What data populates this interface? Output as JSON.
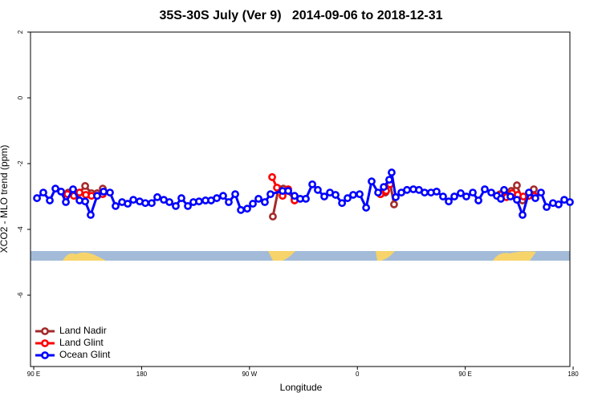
{
  "chart_data": {
    "type": "line",
    "title": "35S-30S July (Ver 9)   2014-09-06 to 2018-12-31",
    "xlabel": "Longitude",
    "ylabel": "XCO2 - MLO trend (ppm)",
    "xlim": [
      87.3,
      537.3
    ],
    "ylim": [
      -8.17,
      2
    ],
    "xticks": [
      {
        "value": 90,
        "label": "90 E"
      },
      {
        "value": 180,
        "label": "180"
      },
      {
        "value": 270,
        "label": "90 W"
      },
      {
        "value": 360,
        "label": "0"
      },
      {
        "value": 450,
        "label": "90 E"
      },
      {
        "value": 540,
        "label": "180"
      }
    ],
    "yticks": [
      2,
      0,
      -2,
      -4,
      -6
    ],
    "legend": "lower left",
    "series": [
      {
        "name": "Land Nadir",
        "color": "#a52a2a",
        "x": [
          118.8,
          123.5,
          128.2,
          132.9,
          138.2,
          142.9,
          147.6,
          null,
          289.5,
          294.2,
          298.2,
          307.6,
          null,
          379.3,
          383.3,
          387.3,
          390.6,
          null,
          479.0,
          483.7,
          488.4,
          493.1,
          497.8,
          502.5,
          507.2
        ],
        "values": [
          -2.88,
          -2.9,
          -2.88,
          -2.68,
          -2.9,
          -2.9,
          -2.76,
          null,
          -3.61,
          -2.76,
          -2.76,
          -3.07,
          null,
          -2.93,
          -2.88,
          -2.59,
          -3.24,
          null,
          -2.93,
          -2.88,
          -2.83,
          -2.66,
          -3.12,
          -2.98,
          -2.78
        ]
      },
      {
        "name": "Land Glint",
        "color": "#ff0000",
        "x": [
          118.1,
          123.5,
          128.2,
          133.5,
          138.2,
          142.9,
          147.6,
          null,
          288.9,
          292.9,
          297.6,
          302.3,
          307.6,
          null,
          379.3,
          384.0,
          387.3,
          null,
          479.7,
          484.4,
          489.1,
          493.8,
          498.5,
          503.1,
          507.8
        ],
        "values": [
          -2.93,
          -2.98,
          -2.88,
          -2.95,
          -2.98,
          -2.98,
          -2.93,
          null,
          -2.41,
          -2.73,
          -2.98,
          -2.78,
          -3.12,
          null,
          -2.93,
          -2.83,
          -2.63,
          null,
          -2.95,
          -3.02,
          -2.9,
          -2.95,
          -3.0,
          -2.98,
          -2.98
        ]
      },
      {
        "name": "Ocean Glint",
        "color": "#0000ff",
        "x": [
          92.7,
          98.0,
          103.4,
          108.1,
          112.8,
          116.8,
          122.8,
          128.2,
          132.9,
          137.5,
          142.9,
          148.3,
          153.6,
          158.3,
          163.7,
          168.4,
          173.1,
          178.4,
          183.1,
          188.4,
          193.1,
          198.5,
          203.2,
          208.5,
          213.2,
          218.6,
          223.2,
          227.9,
          233.3,
          238.0,
          242.7,
          248.0,
          252.7,
          258.1,
          262.8,
          268.1,
          272.8,
          277.5,
          282.8,
          287.5,
          297.6,
          302.3,
          307.6,
          312.3,
          317.0,
          322.4,
          327.0,
          332.4,
          337.1,
          341.8,
          347.2,
          351.8,
          356.5,
          361.9,
          367.3,
          371.9,
          377.3,
          382.0,
          386.6,
          388.6,
          392.0,
          396.7,
          401.4,
          406.7,
          411.4,
          416.1,
          421.4,
          426.1,
          431.5,
          436.2,
          440.9,
          446.2,
          450.9,
          456.3,
          461.0,
          466.3,
          471.7,
          476.4,
          479.7,
          482.4,
          487.7,
          493.1,
          497.8,
          503.1,
          508.5,
          513.2,
          517.9,
          523.2,
          527.9,
          532.6,
          537.3
        ],
        "values": [
          -3.05,
          -2.88,
          -3.12,
          -2.76,
          -2.85,
          -3.17,
          -2.78,
          -3.12,
          -3.15,
          -3.56,
          -2.98,
          -2.85,
          -2.88,
          -3.29,
          -3.17,
          -3.22,
          -3.1,
          -3.15,
          -3.2,
          -3.2,
          -3.02,
          -3.1,
          -3.17,
          -3.29,
          -3.05,
          -3.29,
          -3.17,
          -3.15,
          -3.12,
          -3.12,
          -3.05,
          -2.98,
          -3.17,
          -2.93,
          -3.41,
          -3.37,
          -3.22,
          -3.07,
          -3.17,
          -2.93,
          -2.83,
          -2.83,
          -2.98,
          -3.07,
          -3.07,
          -2.63,
          -2.8,
          -3.0,
          -2.88,
          -2.95,
          -3.2,
          -3.05,
          -2.95,
          -2.93,
          -3.34,
          -2.54,
          -2.88,
          -2.71,
          -2.49,
          -2.27,
          -3.02,
          -2.88,
          -2.8,
          -2.78,
          -2.8,
          -2.88,
          -2.88,
          -2.85,
          -3.0,
          -3.15,
          -3.0,
          -2.9,
          -3.0,
          -2.88,
          -3.12,
          -2.78,
          -2.88,
          -2.98,
          -3.07,
          -2.8,
          -3.0,
          -3.1,
          -3.56,
          -2.88,
          -3.05,
          -2.88,
          -3.32,
          -3.2,
          -3.24,
          -3.1,
          -3.17
        ]
      }
    ]
  }
}
